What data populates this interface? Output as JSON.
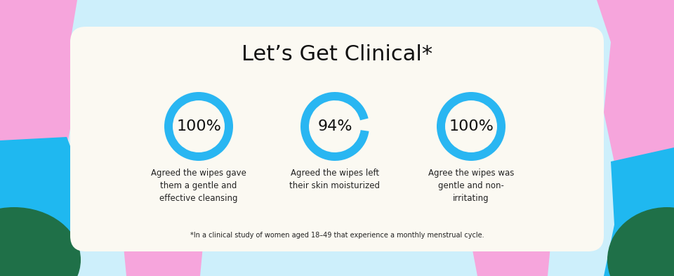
{
  "title": "Let’s Get Clinical*",
  "footnote": "*In a clinical study of women aged 18–49 that experience a monthly menstrual cycle.",
  "chart_data": [
    {
      "type": "donut",
      "values": [
        100
      ],
      "value_labels": [
        "100%"
      ],
      "color": "#29b6f2",
      "caption": "Agreed the wipes gave them a gentle and effective cleansing"
    },
    {
      "type": "donut",
      "values": [
        94
      ],
      "value_labels": [
        "94%"
      ],
      "color": "#29b6f2",
      "caption": "Agreed the wipes left their skin moisturized"
    },
    {
      "type": "donut",
      "values": [
        100
      ],
      "value_labels": [
        "100%"
      ],
      "color": "#29b6f2",
      "caption": "Agree the wipes was gentle and non-irritating"
    }
  ]
}
